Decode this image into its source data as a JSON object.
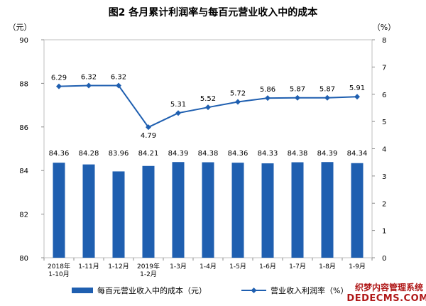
{
  "chart_data": {
    "type": "bar",
    "title": "图2  各月累计利润率与每百元营业收入中的成本",
    "y_left_unit": "（元）",
    "y_right_unit": "（%）",
    "categories": [
      [
        "2018年",
        "1-10月"
      ],
      [
        "1-11月"
      ],
      [
        "1-12月"
      ],
      [
        "2019年",
        "1-2月"
      ],
      [
        "1-3月"
      ],
      [
        "1-4月"
      ],
      [
        "1-5月"
      ],
      [
        "1-6月"
      ],
      [
        "1-7月"
      ],
      [
        "1-8月"
      ],
      [
        "1-9月"
      ]
    ],
    "ylim_left": [
      80,
      90
    ],
    "yticks_left": [
      "80",
      "82",
      "84",
      "86",
      "88",
      "90"
    ],
    "ylim_right": [
      0,
      8
    ],
    "yticks_right": [
      "0",
      "1",
      "2",
      "3",
      "4",
      "5",
      "6",
      "7",
      "8"
    ],
    "series": [
      {
        "name": "每百元营业收入中的成本（元）",
        "type": "bar",
        "axis": "left",
        "color": "#1f5fb0",
        "values": [
          84.36,
          84.28,
          83.96,
          84.21,
          84.39,
          84.38,
          84.36,
          84.33,
          84.38,
          84.39,
          84.34
        ],
        "labels": [
          "84.36",
          "84.28",
          "83.96",
          "84.21",
          "84.39",
          "84.38",
          "84.36",
          "84.33",
          "84.38",
          "84.39",
          "84.34"
        ]
      },
      {
        "name": "营业收入利润率（%）",
        "type": "line",
        "axis": "right",
        "color": "#1f5fb0",
        "marker": "diamond",
        "values": [
          6.29,
          6.32,
          6.32,
          4.79,
          5.31,
          5.52,
          5.72,
          5.86,
          5.87,
          5.87,
          5.91
        ],
        "labels": [
          "6.29",
          "6.32",
          "6.32",
          "4.79",
          "5.31",
          "5.52",
          "5.72",
          "5.86",
          "5.87",
          "5.87",
          "5.91"
        ]
      }
    ],
    "grid": false,
    "legend_position": "bottom"
  },
  "watermark": {
    "line1": "织梦内容管理系统",
    "line2": "DEDECMS.COM"
  }
}
